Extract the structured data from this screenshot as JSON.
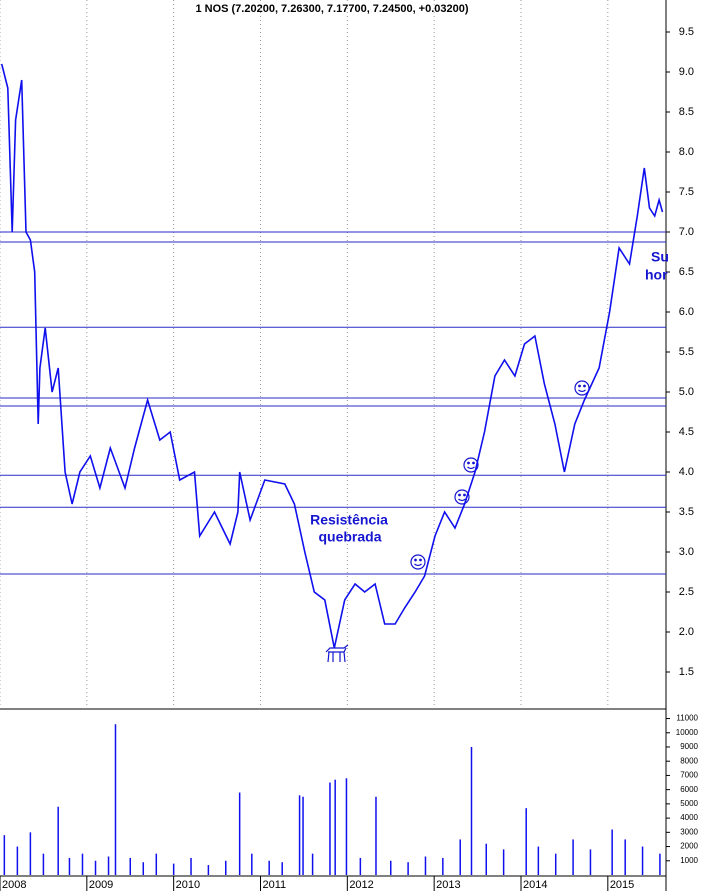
{
  "chart_data": [
    {
      "type": "line",
      "title": "1 NOS (7.20200, 7.26300, 7.17700, 7.24500, +0.03200)",
      "color": "#1010ee",
      "x": [
        2008.02,
        2008.09,
        2008.14,
        2008.18,
        2008.25,
        2008.3,
        2008.35,
        2008.4,
        2008.44,
        2008.46,
        2008.52,
        2008.6,
        2008.67,
        2008.75,
        2008.83,
        2008.92,
        2009.04,
        2009.15,
        2009.27,
        2009.44,
        2009.55,
        2009.7,
        2009.84,
        2009.96,
        2010.07,
        2010.24,
        2010.3,
        2010.47,
        2010.65,
        2010.74,
        2010.76,
        2010.88,
        2011.05,
        2011.28,
        2011.39,
        2011.51,
        2011.62,
        2011.74,
        2011.85,
        2011.97,
        2012.09,
        2012.2,
        2012.32,
        2012.43,
        2012.55,
        2012.66,
        2012.78,
        2012.89,
        2013.01,
        2013.12,
        2013.24,
        2013.35,
        2013.47,
        2013.58,
        2013.7,
        2013.81,
        2013.93,
        2014.04,
        2014.16,
        2014.27,
        2014.39,
        2014.5,
        2014.62,
        2014.73,
        2014.9,
        2015.02,
        2015.13,
        2015.25,
        2015.34,
        2015.42,
        2015.48,
        2015.54,
        2015.59,
        2015.63
      ],
      "values": [
        9.1,
        8.8,
        7.0,
        8.4,
        8.9,
        7.0,
        6.9,
        6.5,
        4.6,
        5.3,
        5.8,
        5.0,
        5.3,
        4.0,
        3.6,
        4.0,
        4.2,
        3.8,
        4.3,
        3.8,
        4.3,
        4.9,
        4.4,
        4.5,
        3.9,
        4.0,
        3.2,
        3.5,
        3.1,
        3.5,
        4.0,
        3.4,
        3.9,
        3.85,
        3.6,
        3.0,
        2.5,
        2.4,
        1.8,
        2.4,
        2.6,
        2.5,
        2.6,
        2.1,
        2.1,
        2.3,
        2.5,
        2.7,
        3.2,
        3.5,
        3.3,
        3.6,
        4.0,
        4.5,
        5.2,
        5.4,
        5.2,
        5.6,
        5.7,
        5.1,
        4.6,
        4.0,
        4.6,
        4.9,
        5.3,
        6.0,
        6.8,
        6.6,
        7.2,
        7.8,
        7.3,
        7.2,
        7.4,
        7.25
      ],
      "xlim": [
        2008,
        2015.67
      ],
      "xticks": [
        2008,
        2009,
        2010,
        2011,
        2012,
        2013,
        2014,
        2015
      ],
      "ylim": [
        1.05,
        9.9
      ],
      "yticks": [
        1.5,
        {
          "value": 2,
          "label": "2.0"
        },
        2.5,
        {
          "value": 3,
          "label": "3.0"
        },
        3.5,
        {
          "value": 4,
          "label": "4.0"
        },
        4.5,
        {
          "value": 5,
          "label": "5.0"
        },
        5.5,
        {
          "value": 6,
          "label": "6.0"
        },
        6.5,
        {
          "value": 7,
          "label": "7.0"
        },
        7.5,
        {
          "value": 8,
          "label": "8.0"
        },
        8.5,
        {
          "value": 9,
          "label": "9.0"
        },
        9.5
      ],
      "reference_lines": [
        7.0,
        6.875,
        5.81,
        4.925,
        4.825,
        3.96,
        3.56,
        2.725
      ],
      "reference_color": "#2a2ac8",
      "annotations": [
        "Resistência",
        "quebrada",
        "Su",
        "hor"
      ]
    },
    {
      "type": "bar",
      "color": "#1010ee",
      "x": [
        2008.05,
        2008.2,
        2008.35,
        2008.5,
        2008.67,
        2008.8,
        2008.95,
        2009.1,
        2009.25,
        2009.33,
        2009.5,
        2009.65,
        2009.8,
        2010.0,
        2010.2,
        2010.4,
        2010.6,
        2010.76,
        2010.9,
        2011.1,
        2011.25,
        2011.45,
        2011.49,
        2011.6,
        2011.8,
        2011.86,
        2011.99,
        2012.15,
        2012.33,
        2012.5,
        2012.7,
        2012.9,
        2013.1,
        2013.3,
        2013.43,
        2013.6,
        2013.8,
        2014.06,
        2014.2,
        2014.4,
        2014.6,
        2014.8,
        2015.05,
        2015.2,
        2015.4,
        2015.6
      ],
      "values": [
        2800,
        2000,
        3000,
        1500,
        4800,
        1200,
        1500,
        1000,
        1300,
        10600,
        1200,
        900,
        1500,
        800,
        1200,
        700,
        1000,
        5800,
        1500,
        1000,
        900,
        5600,
        5500,
        1500,
        6500,
        6700,
        6800,
        1200,
        5500,
        1000,
        900,
        1300,
        1200,
        2500,
        9000,
        2200,
        1800,
        4700,
        2000,
        1500,
        2500,
        1800,
        3200,
        2500,
        2000,
        1500
      ],
      "xlim": [
        2008,
        2015.67
      ],
      "xticks": [
        2008,
        2009,
        2010,
        2011,
        2012,
        2013,
        2014,
        2015
      ],
      "ylim": [
        0,
        11600
      ],
      "yticks": [
        1000,
        2000,
        3000,
        4000,
        5000,
        6000,
        7000,
        8000,
        9000,
        10000,
        11000
      ]
    }
  ]
}
